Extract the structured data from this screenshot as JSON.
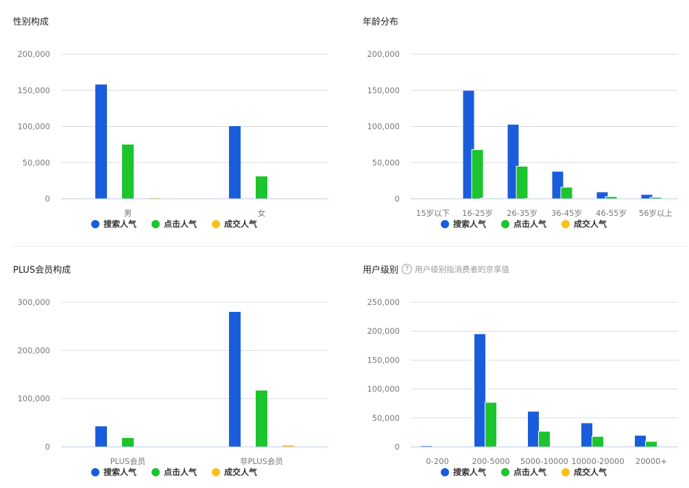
{
  "legend": [
    "搜索人气",
    "点击人气",
    "成交人气"
  ],
  "colors": {
    "search": "#1a5ddc",
    "click": "#1cc42d",
    "deal": "#fbbf1a",
    "grid": "#dcdcdc",
    "baseline": "#b9c9ea",
    "tick": "#777777"
  },
  "chart_data": [
    {
      "type": "bar",
      "title": "性别构成",
      "categories": [
        "男",
        "女"
      ],
      "ylim": [
        0,
        200000
      ],
      "yticks": [
        "0",
        "50,000",
        "100,000",
        "150,000",
        "200,000"
      ],
      "grid": true,
      "legend_placement": "bottom",
      "series": [
        {
          "name": "搜索人气",
          "values": [
            158000,
            100500
          ]
        },
        {
          "name": "点击人气",
          "values": [
            75000,
            31000
          ]
        },
        {
          "name": "成交人气",
          "values": [
            1000,
            0
          ]
        }
      ]
    },
    {
      "type": "bar",
      "title": "年龄分布",
      "categories": [
        "15岁以下",
        "16-25岁",
        "26-35岁",
        "36-45岁",
        "46-55岁",
        "56岁以上"
      ],
      "ylim": [
        0,
        200000
      ],
      "yticks": [
        "0",
        "50,000",
        "100,000",
        "150,000",
        "200,000"
      ],
      "grid": true,
      "legend_placement": "bottom",
      "series": [
        {
          "name": "搜索人气",
          "values": [
            0,
            150000,
            103000,
            38000,
            9500,
            6000
          ]
        },
        {
          "name": "点击人气",
          "values": [
            0,
            68000,
            45000,
            16000,
            3000,
            2000
          ]
        },
        {
          "name": "成交人气",
          "values": [
            0,
            1000,
            500,
            0,
            0,
            0
          ]
        }
      ]
    },
    {
      "type": "bar",
      "title": "PLUS会员构成",
      "categories": [
        "PLUS会员",
        "非PLUS会员"
      ],
      "ylim": [
        0,
        300000
      ],
      "yticks": [
        "0",
        "100,000",
        "200,000",
        "300,000"
      ],
      "grid": true,
      "legend_placement": "bottom",
      "series": [
        {
          "name": "搜索人气",
          "values": [
            42600,
            280000
          ]
        },
        {
          "name": "点击人气",
          "values": [
            18500,
            117000
          ]
        },
        {
          "name": "成交人气",
          "values": [
            0,
            3000
          ]
        }
      ]
    },
    {
      "type": "bar",
      "title": "用户级别",
      "subtitle": "用户级别指消费者的京享值",
      "categories": [
        "0-200",
        "200-5000",
        "5000-10000",
        "10000-20000",
        "20000+"
      ],
      "ylim": [
        0,
        250000
      ],
      "yticks": [
        "0",
        "50,000",
        "100,000",
        "150,000",
        "200,000",
        "250,000"
      ],
      "grid": true,
      "legend_placement": "bottom",
      "series": [
        {
          "name": "搜索人气",
          "values": [
            2000,
            195500,
            61600,
            41500,
            20000
          ]
        },
        {
          "name": "点击人气",
          "values": [
            0,
            77000,
            27000,
            18000,
            9500
          ]
        },
        {
          "name": "成交人气",
          "values": [
            0,
            1000,
            0,
            0,
            0
          ]
        }
      ]
    }
  ]
}
